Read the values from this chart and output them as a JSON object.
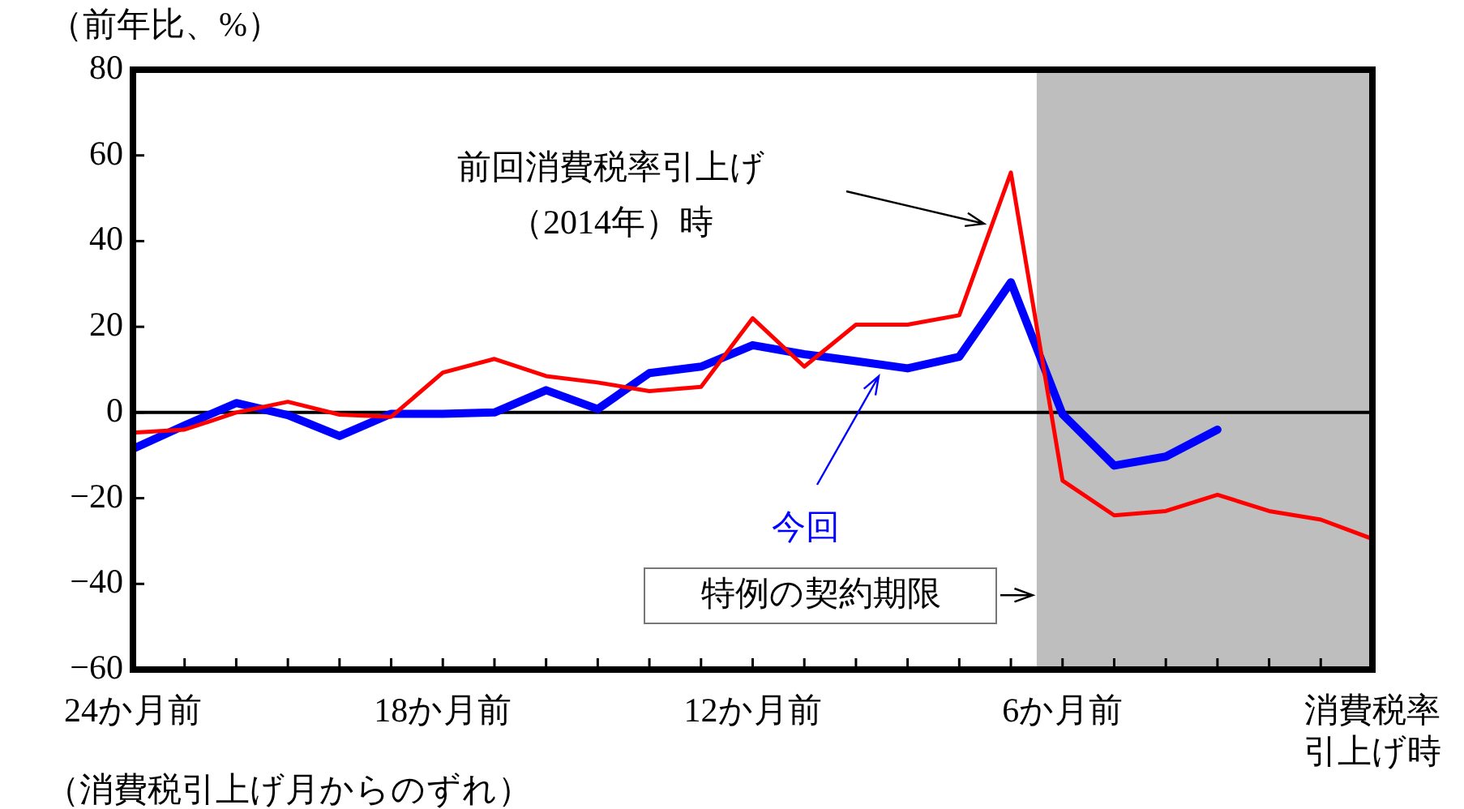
{
  "chart_data": {
    "type": "line",
    "ylabel": "（前年比、%）",
    "xlabel": "（消費税引上げ月からのずれ）",
    "x": [
      -24,
      -23,
      -22,
      -21,
      -20,
      -19,
      -18,
      -17,
      -16,
      -15,
      -14,
      -13,
      -12,
      -11,
      -10,
      -9,
      -8,
      -7,
      -6,
      -5,
      -4,
      -3,
      -2,
      -1,
      0
    ],
    "series": [
      {
        "name": "前回消費税率引上げ（2014年）時",
        "color": "#ff0000",
        "values": [
          -4.7,
          -4,
          0,
          2.5,
          -0.5,
          -1,
          9.3,
          12.5,
          8.5,
          7,
          5,
          6,
          22,
          10.7,
          20.5,
          20.5,
          22.7,
          56,
          -15.9,
          -24,
          -23,
          -19.2,
          -23,
          -25,
          -29.5
        ]
      },
      {
        "name": "今回",
        "color": "#0000ff",
        "values": [
          -8.5,
          -3,
          2.2,
          -0.6,
          -5.5,
          -0.3,
          -0.3,
          0,
          5.2,
          0.8,
          9.2,
          10.7,
          15.7,
          13.6,
          12,
          10.3,
          13,
          30.4,
          -0.4,
          -12.4,
          -10.3,
          -4,
          null,
          null,
          null
        ]
      }
    ],
    "xlim": [
      -24,
      0
    ],
    "xticks": [
      {
        "value": -24,
        "label": "24か月前"
      },
      {
        "value": -23,
        "label": null
      },
      {
        "value": -22,
        "label": null
      },
      {
        "value": -21,
        "label": null
      },
      {
        "value": -20,
        "label": null
      },
      {
        "value": -19,
        "label": null
      },
      {
        "value": -18,
        "label": "18か月前"
      },
      {
        "value": -17,
        "label": null
      },
      {
        "value": -16,
        "label": null
      },
      {
        "value": -15,
        "label": null
      },
      {
        "value": -14,
        "label": null
      },
      {
        "value": -13,
        "label": null
      },
      {
        "value": -12,
        "label": "12か月前"
      },
      {
        "value": -11,
        "label": null
      },
      {
        "value": -10,
        "label": null
      },
      {
        "value": -9,
        "label": null
      },
      {
        "value": -8,
        "label": null
      },
      {
        "value": -7,
        "label": null
      },
      {
        "value": -6,
        "label": "6か月前"
      },
      {
        "value": -5,
        "label": null
      },
      {
        "value": -4,
        "label": null
      },
      {
        "value": -3,
        "label": null
      },
      {
        "value": -2,
        "label": null
      },
      {
        "value": -1,
        "label": null
      },
      {
        "value": 0,
        "label": "消費税率引上げ時"
      }
    ],
    "ylim": [
      -60,
      80
    ],
    "yticks": [
      -60,
      -40,
      -20,
      0,
      20,
      40,
      60,
      80
    ],
    "ref_lines": [
      {
        "axis": "y",
        "value": 0,
        "color": "#000000"
      }
    ],
    "bands": [
      {
        "axis": "x",
        "from": -6.5,
        "to": 0,
        "label": "特例の契約期限",
        "color": "#bebebe"
      }
    ],
    "legend": false,
    "marker": "none",
    "line_style": "solid"
  }
}
